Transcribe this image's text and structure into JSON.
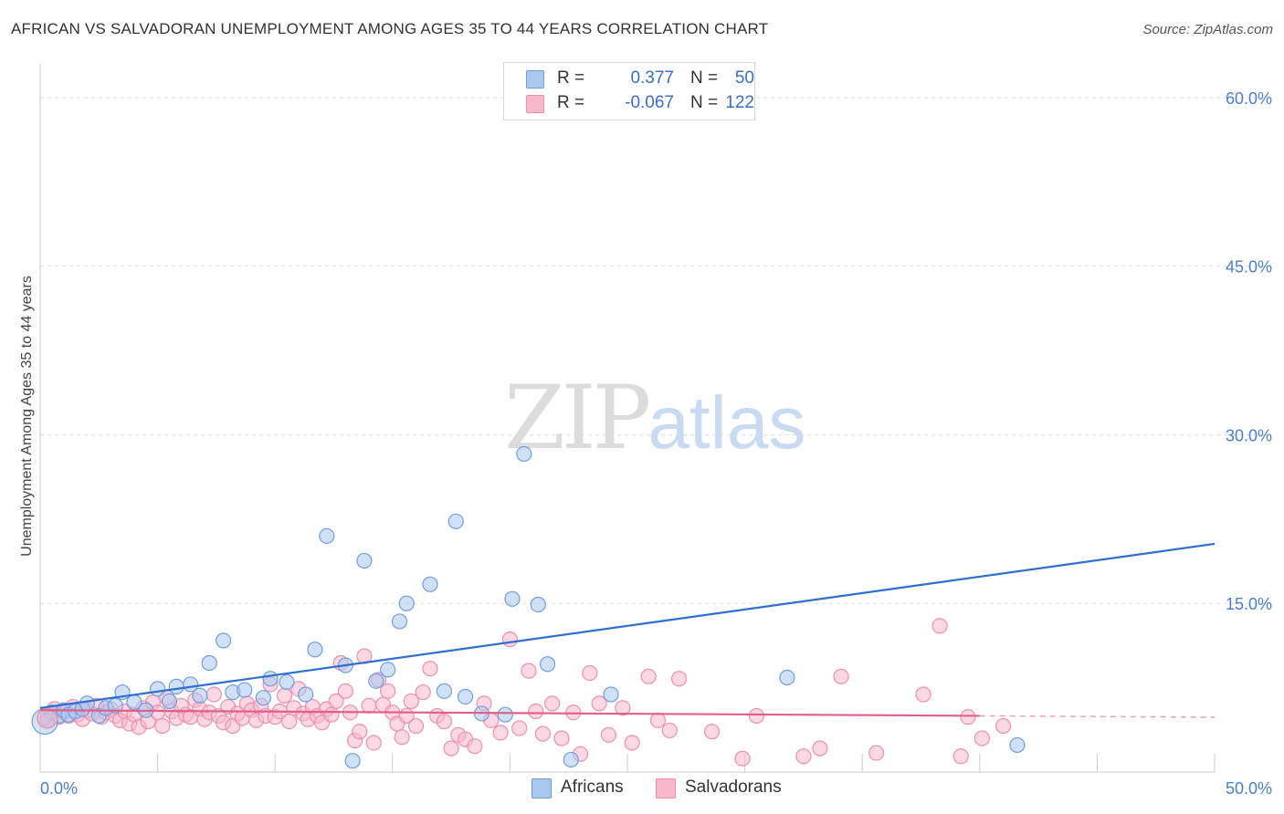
{
  "header": {
    "title": "AFRICAN VS SALVADORAN UNEMPLOYMENT AMONG AGES 35 TO 44 YEARS CORRELATION CHART",
    "source": "Source: ZipAtlas.com"
  },
  "watermark": {
    "zip": "ZIP",
    "atlas": "atlas"
  },
  "legend": {
    "rows": [
      {
        "r_label": "R =",
        "r_value": "0.377",
        "n_label": "N =",
        "n_value": "50",
        "color": "#a9c8f0"
      },
      {
        "r_label": "R =",
        "r_value": "-0.067",
        "n_label": "N =",
        "n_value": "122",
        "color": "#f7b8cc"
      }
    ]
  },
  "bottom_legend": {
    "africans": "Africans",
    "salvadorans": "Salvadorans"
  },
  "colors": {
    "africans_fill": "#a9c8f0",
    "africans_stroke": "#6f9fdd",
    "africans_line": "#2f6fd0",
    "salvadorans_fill": "#f7b8cc",
    "salvadorans_stroke": "#ee8fae",
    "salvadorans_line": "#e0608a",
    "tick_text": "#4a7fd0",
    "grid": "#dddddd"
  },
  "chart_data": {
    "type": "scatter",
    "title": "AFRICAN VS SALVADORAN UNEMPLOYMENT AMONG AGES 35 TO 44 YEARS CORRELATION CHART",
    "xlabel": "",
    "ylabel": "Unemployment Among Ages 35 to 44 years",
    "xlim": [
      0,
      50
    ],
    "ylim": [
      0,
      63
    ],
    "x_tick_labels": [
      "0.0%",
      "50.0%"
    ],
    "y_ticks": [
      15,
      30,
      45,
      60
    ],
    "y_tick_labels": [
      "15.0%",
      "30.0%",
      "45.0%",
      "60.0%"
    ],
    "grid": "horizontal dashed",
    "legend_position": "top-center",
    "series": [
      {
        "name": "Africans",
        "trend": {
          "x": [
            0,
            50
          ],
          "y": [
            5.7,
            20.3
          ]
        },
        "points": [
          [
            0.3,
            4.6
          ],
          [
            0.5,
            5.3
          ],
          [
            0.8,
            5.0
          ],
          [
            1.0,
            5.5
          ],
          [
            1.2,
            5.1
          ],
          [
            1.5,
            5.4
          ],
          [
            1.8,
            5.6
          ],
          [
            2.0,
            6.1
          ],
          [
            2.5,
            5.0
          ],
          [
            2.8,
            5.7
          ],
          [
            3.2,
            5.9
          ],
          [
            3.5,
            7.1
          ],
          [
            4.0,
            6.2
          ],
          [
            4.5,
            5.5
          ],
          [
            5.0,
            7.4
          ],
          [
            5.5,
            6.3
          ],
          [
            5.8,
            7.6
          ],
          [
            6.4,
            7.8
          ],
          [
            6.8,
            6.8
          ],
          [
            7.2,
            9.7
          ],
          [
            7.8,
            11.7
          ],
          [
            8.2,
            7.1
          ],
          [
            8.7,
            7.3
          ],
          [
            9.5,
            6.6
          ],
          [
            9.8,
            8.3
          ],
          [
            10.5,
            8.0
          ],
          [
            11.3,
            6.9
          ],
          [
            11.7,
            10.9
          ],
          [
            12.2,
            21.0
          ],
          [
            13.0,
            9.5
          ],
          [
            13.3,
            1.0
          ],
          [
            13.8,
            18.8
          ],
          [
            14.3,
            8.1
          ],
          [
            14.8,
            9.1
          ],
          [
            15.3,
            13.4
          ],
          [
            15.6,
            15.0
          ],
          [
            16.6,
            16.7
          ],
          [
            17.2,
            7.2
          ],
          [
            17.7,
            22.3
          ],
          [
            18.1,
            6.7
          ],
          [
            18.8,
            5.2
          ],
          [
            19.8,
            5.1
          ],
          [
            20.1,
            15.4
          ],
          [
            20.6,
            28.3
          ],
          [
            21.2,
            14.9
          ],
          [
            21.6,
            9.6
          ],
          [
            22.6,
            1.1
          ],
          [
            24.3,
            6.9
          ],
          [
            31.8,
            8.4
          ],
          [
            41.6,
            2.4
          ]
        ]
      },
      {
        "name": "Salvadorans",
        "trend": {
          "x": [
            0,
            40
          ],
          "y": [
            5.5,
            5.0
          ]
        },
        "points": [
          [
            0.2,
            4.8
          ],
          [
            0.4,
            5.2
          ],
          [
            0.6,
            5.6
          ],
          [
            0.8,
            4.9
          ],
          [
            1.0,
            5.3
          ],
          [
            1.2,
            5.0
          ],
          [
            1.4,
            5.8
          ],
          [
            1.6,
            5.1
          ],
          [
            1.8,
            4.7
          ],
          [
            2.0,
            5.5
          ],
          [
            2.2,
            5.2
          ],
          [
            2.4,
            5.9
          ],
          [
            2.6,
            4.9
          ],
          [
            2.8,
            5.3
          ],
          [
            3.0,
            5.6
          ],
          [
            3.2,
            5.0
          ],
          [
            3.4,
            4.6
          ],
          [
            3.6,
            5.4
          ],
          [
            3.8,
            4.3
          ],
          [
            4.0,
            5.1
          ],
          [
            4.2,
            4.0
          ],
          [
            4.4,
            5.7
          ],
          [
            4.6,
            4.5
          ],
          [
            4.8,
            6.2
          ],
          [
            5.0,
            5.3
          ],
          [
            5.2,
            4.1
          ],
          [
            5.4,
            6.6
          ],
          [
            5.6,
            5.4
          ],
          [
            5.8,
            4.8
          ],
          [
            6.0,
            5.9
          ],
          [
            6.2,
            5.1
          ],
          [
            6.4,
            4.9
          ],
          [
            6.6,
            6.4
          ],
          [
            6.8,
            5.6
          ],
          [
            7.0,
            4.7
          ],
          [
            7.2,
            5.3
          ],
          [
            7.4,
            6.9
          ],
          [
            7.6,
            5.0
          ],
          [
            7.8,
            4.4
          ],
          [
            8.0,
            5.8
          ],
          [
            8.2,
            4.1
          ],
          [
            8.4,
            5.2
          ],
          [
            8.6,
            4.8
          ],
          [
            8.8,
            6.1
          ],
          [
            9.0,
            5.5
          ],
          [
            9.2,
            4.6
          ],
          [
            9.4,
            5.9
          ],
          [
            9.6,
            5.0
          ],
          [
            9.8,
            7.8
          ],
          [
            10.0,
            4.9
          ],
          [
            10.2,
            5.4
          ],
          [
            10.4,
            6.8
          ],
          [
            10.6,
            4.5
          ],
          [
            10.8,
            5.7
          ],
          [
            11.0,
            7.4
          ],
          [
            11.2,
            5.2
          ],
          [
            11.4,
            4.7
          ],
          [
            11.6,
            5.8
          ],
          [
            11.8,
            5.0
          ],
          [
            12.0,
            4.4
          ],
          [
            12.2,
            5.6
          ],
          [
            12.4,
            5.1
          ],
          [
            12.6,
            6.3
          ],
          [
            12.8,
            9.7
          ],
          [
            13.0,
            7.2
          ],
          [
            13.2,
            5.3
          ],
          [
            13.4,
            2.8
          ],
          [
            13.6,
            3.6
          ],
          [
            13.8,
            10.3
          ],
          [
            14.0,
            5.9
          ],
          [
            14.2,
            2.6
          ],
          [
            14.4,
            8.2
          ],
          [
            14.6,
            6.0
          ],
          [
            14.8,
            7.2
          ],
          [
            15.0,
            5.3
          ],
          [
            15.2,
            4.3
          ],
          [
            15.4,
            3.1
          ],
          [
            15.6,
            5.0
          ],
          [
            15.8,
            6.3
          ],
          [
            16.0,
            4.1
          ],
          [
            16.3,
            7.1
          ],
          [
            16.6,
            9.2
          ],
          [
            16.9,
            5.0
          ],
          [
            17.2,
            4.5
          ],
          [
            17.5,
            2.1
          ],
          [
            17.8,
            3.3
          ],
          [
            18.1,
            2.9
          ],
          [
            18.5,
            2.3
          ],
          [
            18.9,
            6.1
          ],
          [
            19.2,
            4.6
          ],
          [
            19.6,
            3.5
          ],
          [
            20.0,
            11.8
          ],
          [
            20.4,
            3.9
          ],
          [
            20.8,
            9.0
          ],
          [
            21.1,
            5.4
          ],
          [
            21.4,
            3.4
          ],
          [
            21.8,
            6.1
          ],
          [
            22.2,
            3.0
          ],
          [
            22.7,
            5.3
          ],
          [
            23.0,
            1.6
          ],
          [
            23.4,
            8.8
          ],
          [
            23.8,
            6.1
          ],
          [
            24.2,
            3.3
          ],
          [
            24.8,
            5.7
          ],
          [
            25.2,
            2.6
          ],
          [
            25.9,
            8.5
          ],
          [
            26.3,
            4.6
          ],
          [
            26.8,
            3.7
          ],
          [
            27.2,
            8.3
          ],
          [
            28.6,
            3.6
          ],
          [
            29.9,
            1.2
          ],
          [
            30.5,
            5.0
          ],
          [
            32.5,
            1.4
          ],
          [
            33.2,
            2.1
          ],
          [
            34.1,
            8.5
          ],
          [
            35.6,
            1.7
          ],
          [
            37.6,
            6.9
          ],
          [
            38.3,
            13.0
          ],
          [
            39.2,
            1.4
          ],
          [
            39.5,
            4.9
          ],
          [
            40.1,
            3.0
          ],
          [
            41.0,
            4.1
          ]
        ]
      }
    ]
  }
}
